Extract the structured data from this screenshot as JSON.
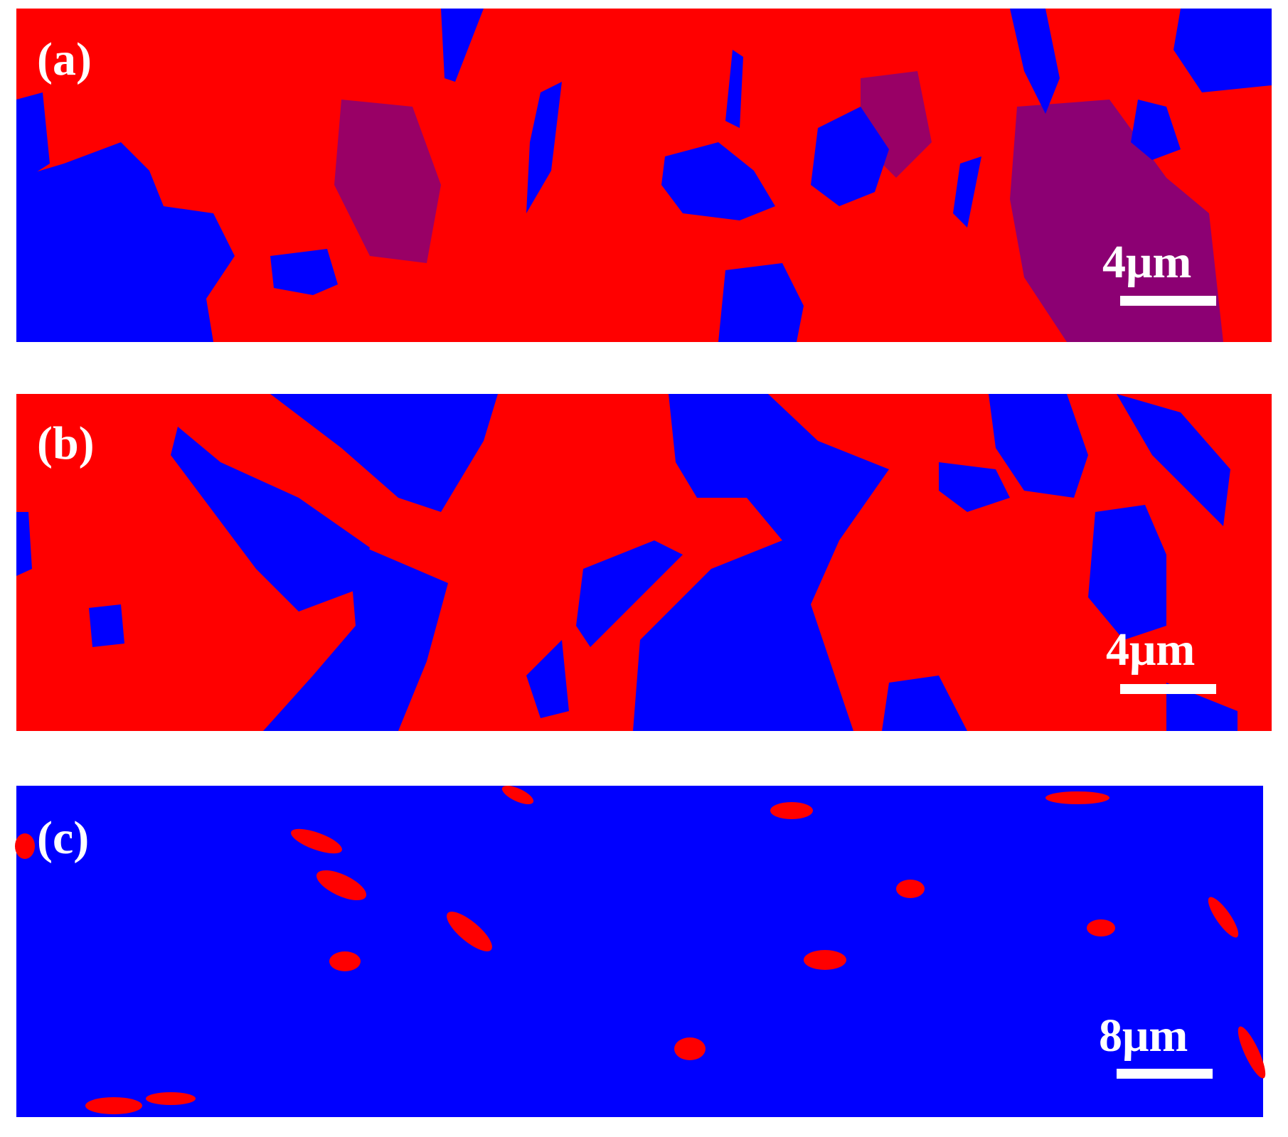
{
  "panels": [
    {
      "label": "(a)",
      "scale": "4μm"
    },
    {
      "label": "(b)",
      "scale": "4μm"
    },
    {
      "label": "(c)",
      "scale": "8μm"
    }
  ]
}
